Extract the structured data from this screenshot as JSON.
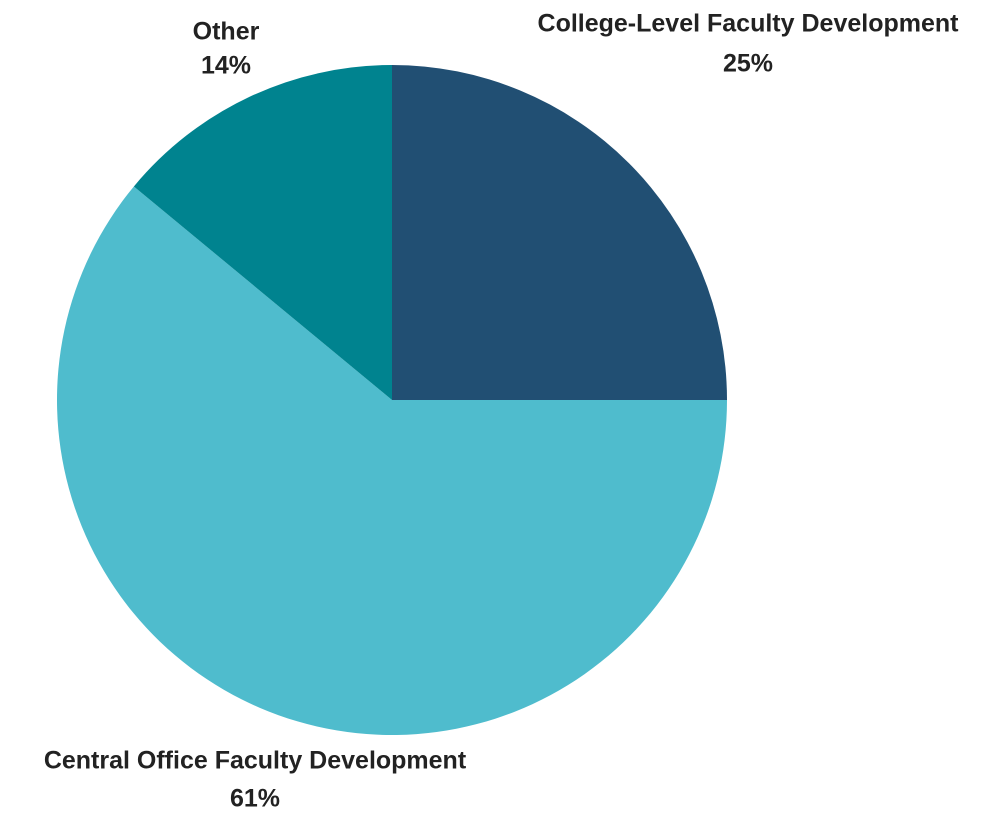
{
  "chart_data": {
    "type": "pie",
    "categories": [
      "College-Level Faculty Development",
      "Central Office Faculty Development",
      "Other"
    ],
    "values": [
      25,
      61,
      14
    ],
    "value_labels": [
      "25%",
      "61%",
      "14%"
    ],
    "colors": [
      "#214f73",
      "#4fbccd",
      "#00838f"
    ]
  }
}
